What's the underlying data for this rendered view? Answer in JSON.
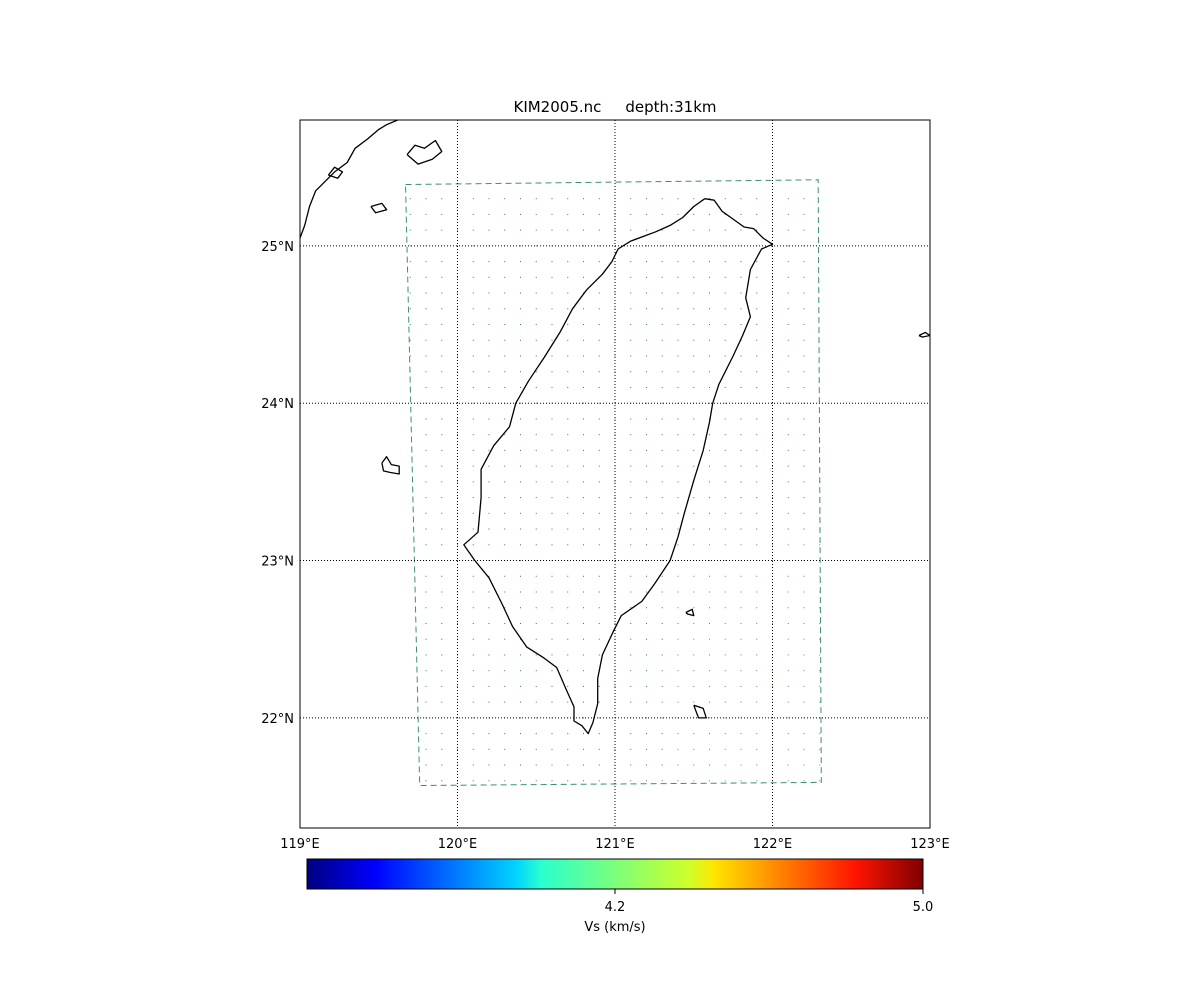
{
  "figure": {
    "title_file": "KIM2005.nc",
    "title_depth": "depth:31km"
  },
  "chart_data": {
    "type": "map",
    "projection": "cylindrical",
    "xlim": [
      119,
      123
    ],
    "ylim": [
      21.3,
      25.8
    ],
    "x_ticks": [
      {
        "value": 119,
        "label": "119°E"
      },
      {
        "value": 120,
        "label": "120°E"
      },
      {
        "value": 121,
        "label": "121°E"
      },
      {
        "value": 122,
        "label": "122°E"
      },
      {
        "value": 123,
        "label": "123°E"
      }
    ],
    "y_ticks": [
      {
        "value": 22,
        "label": "22°N"
      },
      {
        "value": 23,
        "label": "23°N"
      },
      {
        "value": 24,
        "label": "24°N"
      },
      {
        "value": 25,
        "label": "25°N"
      }
    ],
    "grid": "dotted",
    "model_domain_corners": [
      [
        119.67,
        25.39
      ],
      [
        122.29,
        25.42
      ],
      [
        122.31,
        21.59
      ],
      [
        119.76,
        21.57
      ]
    ],
    "sample_points": {
      "lon_step": 0.1,
      "lat_step": 0.1,
      "marker": "dot"
    },
    "colorbar": {
      "label": "Vs (km/s)",
      "colormap": "jet",
      "orientation": "horizontal",
      "range": [
        3.4,
        5.0
      ],
      "ticks": [
        {
          "value": 4.2,
          "label": "4.2"
        },
        {
          "value": 5.0,
          "label": "5.0"
        }
      ]
    },
    "coastlines": [
      {
        "name": "taiwan",
        "coords": [
          [
            121.57,
            25.3
          ],
          [
            121.63,
            25.29
          ],
          [
            121.68,
            25.22
          ],
          [
            121.75,
            25.17
          ],
          [
            121.82,
            25.12
          ],
          [
            121.88,
            25.11
          ],
          [
            121.94,
            25.05
          ],
          [
            122.0,
            25.01
          ],
          [
            121.93,
            24.98
          ],
          [
            121.86,
            24.85
          ],
          [
            121.83,
            24.67
          ],
          [
            121.86,
            24.55
          ],
          [
            121.81,
            24.43
          ],
          [
            121.75,
            24.3
          ],
          [
            121.66,
            24.12
          ],
          [
            121.62,
            24.0
          ],
          [
            121.6,
            23.88
          ],
          [
            121.56,
            23.7
          ],
          [
            121.5,
            23.51
          ],
          [
            121.44,
            23.3
          ],
          [
            121.4,
            23.15
          ],
          [
            121.35,
            23.0
          ],
          [
            121.25,
            22.85
          ],
          [
            121.17,
            22.74
          ],
          [
            121.04,
            22.65
          ],
          [
            120.99,
            22.55
          ],
          [
            120.92,
            22.4
          ],
          [
            120.89,
            22.25
          ],
          [
            120.89,
            22.09
          ],
          [
            120.86,
            21.97
          ],
          [
            120.83,
            21.9
          ],
          [
            120.79,
            21.95
          ],
          [
            120.74,
            21.98
          ],
          [
            120.74,
            22.07
          ],
          [
            120.69,
            22.18
          ],
          [
            120.63,
            22.32
          ],
          [
            120.55,
            22.38
          ],
          [
            120.44,
            22.45
          ],
          [
            120.35,
            22.58
          ],
          [
            120.28,
            22.73
          ],
          [
            120.2,
            22.89
          ],
          [
            120.11,
            23.0
          ],
          [
            120.04,
            23.1
          ],
          [
            120.13,
            23.18
          ],
          [
            120.15,
            23.4
          ],
          [
            120.15,
            23.58
          ],
          [
            120.23,
            23.73
          ],
          [
            120.33,
            23.85
          ],
          [
            120.37,
            24.0
          ],
          [
            120.45,
            24.14
          ],
          [
            120.55,
            24.29
          ],
          [
            120.65,
            24.45
          ],
          [
            120.73,
            24.6
          ],
          [
            120.82,
            24.72
          ],
          [
            120.92,
            24.82
          ],
          [
            120.98,
            24.9
          ],
          [
            121.02,
            24.98
          ],
          [
            121.1,
            25.03
          ],
          [
            121.26,
            25.09
          ],
          [
            121.35,
            25.13
          ],
          [
            121.43,
            25.18
          ],
          [
            121.5,
            25.25
          ],
          [
            121.57,
            25.3
          ]
        ]
      },
      {
        "name": "penghu",
        "coords": [
          [
            119.52,
            23.62
          ],
          [
            119.55,
            23.66
          ],
          [
            119.58,
            23.61
          ],
          [
            119.63,
            23.6
          ],
          [
            119.63,
            23.55
          ],
          [
            119.57,
            23.56
          ],
          [
            119.53,
            23.57
          ],
          [
            119.52,
            23.62
          ]
        ]
      },
      {
        "name": "green-island",
        "coords": [
          [
            121.45,
            22.67
          ],
          [
            121.49,
            22.69
          ],
          [
            121.5,
            22.65
          ],
          [
            121.46,
            22.66
          ],
          [
            121.45,
            22.67
          ]
        ]
      },
      {
        "name": "orchid-island",
        "coords": [
          [
            121.5,
            22.08
          ],
          [
            121.56,
            22.06
          ],
          [
            121.58,
            22.0
          ],
          [
            121.53,
            22.0
          ],
          [
            121.5,
            22.08
          ]
        ]
      },
      {
        "name": "china-coast",
        "coords": [
          [
            119.0,
            25.05
          ],
          [
            119.03,
            25.13
          ],
          [
            119.06,
            25.25
          ],
          [
            119.1,
            25.35
          ],
          [
            119.15,
            25.4
          ],
          [
            119.22,
            25.47
          ],
          [
            119.3,
            25.53
          ],
          [
            119.35,
            25.62
          ],
          [
            119.43,
            25.68
          ],
          [
            119.5,
            25.74
          ],
          [
            119.55,
            25.77
          ],
          [
            119.62,
            25.8
          ]
        ]
      },
      {
        "name": "china-islet-1",
        "coords": [
          [
            119.18,
            25.45
          ],
          [
            119.22,
            25.5
          ],
          [
            119.27,
            25.47
          ],
          [
            119.24,
            25.43
          ],
          [
            119.18,
            25.45
          ]
        ]
      },
      {
        "name": "china-islet-2",
        "coords": [
          [
            119.45,
            25.25
          ],
          [
            119.52,
            25.27
          ],
          [
            119.55,
            25.23
          ],
          [
            119.48,
            25.21
          ],
          [
            119.45,
            25.25
          ]
        ]
      },
      {
        "name": "matsu",
        "coords": [
          [
            119.68,
            25.58
          ],
          [
            119.73,
            25.64
          ],
          [
            119.79,
            25.62
          ],
          [
            119.86,
            25.67
          ],
          [
            119.9,
            25.6
          ],
          [
            119.84,
            25.55
          ],
          [
            119.75,
            25.52
          ],
          [
            119.68,
            25.58
          ]
        ]
      },
      {
        "name": "east-islet",
        "coords": [
          [
            122.93,
            24.43
          ],
          [
            122.97,
            24.45
          ],
          [
            123.0,
            24.43
          ],
          [
            122.95,
            24.42
          ],
          [
            122.93,
            24.43
          ]
        ]
      }
    ]
  }
}
